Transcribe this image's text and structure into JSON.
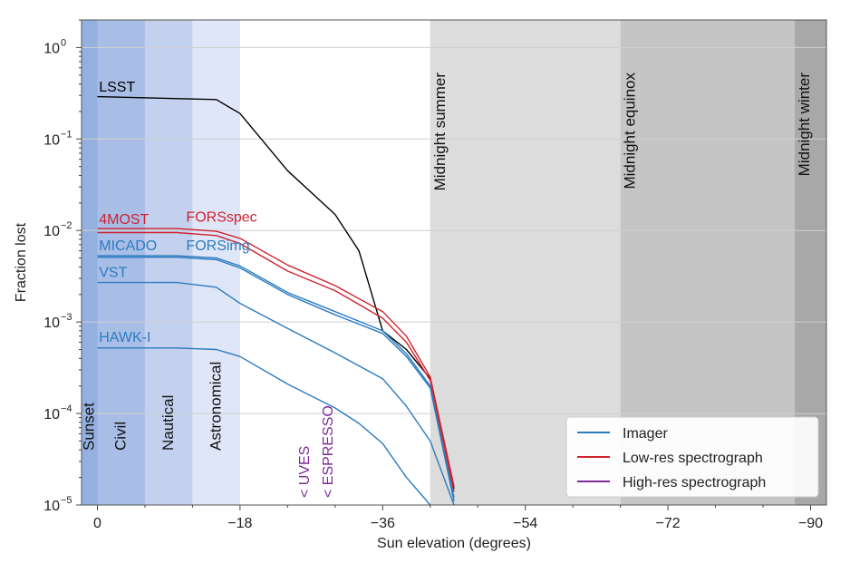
{
  "chart_data": {
    "type": "line",
    "title": "",
    "xlabel": "Sun elevation (degrees)",
    "ylabel": "Fraction lost",
    "x_scale": "linear",
    "x_inverted": true,
    "xlim": [
      2,
      -92
    ],
    "xticks": [
      0,
      -18,
      -36,
      -54,
      -72,
      -90
    ],
    "xtick_labels": [
      "0",
      "−18",
      "−36",
      "−54",
      "−72",
      "−90"
    ],
    "y_scale": "log",
    "ylim": [
      1e-05,
      2
    ],
    "yticks": [
      1e-05,
      0.0001,
      0.001,
      0.01,
      0.1,
      1
    ],
    "ytick_labels": [
      {
        "base": "10",
        "exp": "−5"
      },
      {
        "base": "10",
        "exp": "−4"
      },
      {
        "base": "10",
        "exp": "−3"
      },
      {
        "base": "10",
        "exp": "−2"
      },
      {
        "base": "10",
        "exp": "−1"
      },
      {
        "base": "10",
        "exp": "0"
      }
    ],
    "grid": "horizontal",
    "twilight_bands": [
      {
        "label": "Sunset",
        "from": 2,
        "to": 0,
        "color": "#93b0e0"
      },
      {
        "label": "Civil",
        "from": 0,
        "to": -6,
        "color": "#a9bee6"
      },
      {
        "label": "Nautical",
        "from": -6,
        "to": -12,
        "color": "#c3d1ee"
      },
      {
        "label": "Astronomical",
        "from": -12,
        "to": -18,
        "color": "#dfe6f7"
      }
    ],
    "midnight_bands": [
      {
        "label": "Midnight summer",
        "from": -42,
        "to": -66,
        "color": "#dcdcdc"
      },
      {
        "label": "Midnight equinox",
        "from": -66,
        "to": -88,
        "color": "#c5c5c5"
      },
      {
        "label": "Midnight winter",
        "from": -88,
        "to": -92,
        "color": "#a8a8a8"
      }
    ],
    "series": [
      {
        "name": "LSST",
        "category": "Imager",
        "color": "#000000",
        "x": [
          0,
          -15,
          -18,
          -24,
          -30,
          -33,
          -36,
          -39,
          -42,
          -45
        ],
        "y": [
          0.29,
          0.27,
          0.19,
          0.045,
          0.015,
          0.006,
          0.0008,
          0.0005,
          0.00024,
          1.5e-05
        ]
      },
      {
        "name": "4MOST",
        "category": "Low-res spectrograph",
        "color": "#d0222f",
        "x": [
          0,
          -10,
          -15,
          -18,
          -24,
          -30,
          -36,
          -39,
          -42,
          -45
        ],
        "y": [
          0.0105,
          0.0105,
          0.0098,
          0.0082,
          0.0042,
          0.0025,
          0.0013,
          0.0007,
          0.00025,
          1.6e-05
        ]
      },
      {
        "name": "FORSspec",
        "category": "Low-res spectrograph",
        "color": "#d0222f",
        "x": [
          0,
          -10,
          -15,
          -18,
          -24,
          -30,
          -36,
          -39,
          -42,
          -45
        ],
        "y": [
          0.0095,
          0.0095,
          0.0088,
          0.0072,
          0.0036,
          0.0022,
          0.0011,
          0.0006,
          0.00023,
          1.4e-05
        ]
      },
      {
        "name": "MICADO",
        "category": "Imager",
        "color": "#2b7bc0",
        "x": [
          0,
          -10,
          -15,
          -18,
          -24,
          -30,
          -36,
          -39,
          -42,
          -45
        ],
        "y": [
          0.0053,
          0.0053,
          0.005,
          0.0041,
          0.0021,
          0.0013,
          0.0008,
          0.00045,
          0.0002,
          1.2e-05
        ]
      },
      {
        "name": "FORSimg",
        "category": "Imager",
        "color": "#2b7bc0",
        "x": [
          0,
          -10,
          -15,
          -18,
          -24,
          -30,
          -36,
          -39,
          -42,
          -45
        ],
        "y": [
          0.0051,
          0.0051,
          0.0048,
          0.0039,
          0.002,
          0.0012,
          0.00075,
          0.00042,
          0.00019,
          1.1e-05
        ]
      },
      {
        "name": "VST",
        "category": "Imager",
        "color": "#2b7bc0",
        "x": [
          0,
          -10,
          -15,
          -18,
          -24,
          -30,
          -36,
          -39,
          -42,
          -45
        ],
        "y": [
          0.0027,
          0.0027,
          0.0024,
          0.0016,
          0.00085,
          0.00046,
          0.00024,
          0.00012,
          5e-05,
          1e-05
        ]
      },
      {
        "name": "HAWK-I",
        "category": "Imager",
        "color": "#2b7bc0",
        "x": [
          0,
          -10,
          -15,
          -18,
          -24,
          -30,
          -33,
          -36,
          -39,
          -42
        ],
        "y": [
          0.00052,
          0.00052,
          0.0005,
          0.00042,
          0.00021,
          0.000115,
          7.8e-05,
          4.7e-05,
          2e-05,
          1e-05
        ]
      }
    ],
    "series_labels": [
      {
        "text": "LSST",
        "x": -0.2,
        "y": 0.33,
        "color": "#000000"
      },
      {
        "text": "4MOST",
        "x": -0.2,
        "y": 0.0118,
        "color": "#d0222f"
      },
      {
        "text": "FORSspec",
        "x": -11.2,
        "y": 0.0125,
        "color": "#d0222f"
      },
      {
        "text": "MICADO",
        "x": -0.2,
        "y": 0.0061,
        "color": "#2b7bc0"
      },
      {
        "text": "FORSimg",
        "x": -11.2,
        "y": 0.0061,
        "color": "#2b7bc0"
      },
      {
        "text": "VST",
        "x": -0.2,
        "y": 0.0031,
        "color": "#2b7bc0"
      },
      {
        "text": "HAWK-I",
        "x": -0.2,
        "y": 0.00061,
        "color": "#2b7bc0"
      }
    ],
    "upper_limits": [
      {
        "text": "< UVES",
        "x": -26,
        "y": 1.2e-05,
        "color": "#7b2a96"
      },
      {
        "text": "< ESPRESSO",
        "x": -29,
        "y": 1.2e-05,
        "color": "#7b2a96"
      }
    ],
    "legend": {
      "position": "bottom-right",
      "entries": [
        {
          "label": "Imager",
          "color": "#2b7bc0"
        },
        {
          "label": "Low-res spectrograph",
          "color": "#d0222f"
        },
        {
          "label": "High-res spectrograph",
          "color": "#7b2a96"
        }
      ]
    }
  }
}
